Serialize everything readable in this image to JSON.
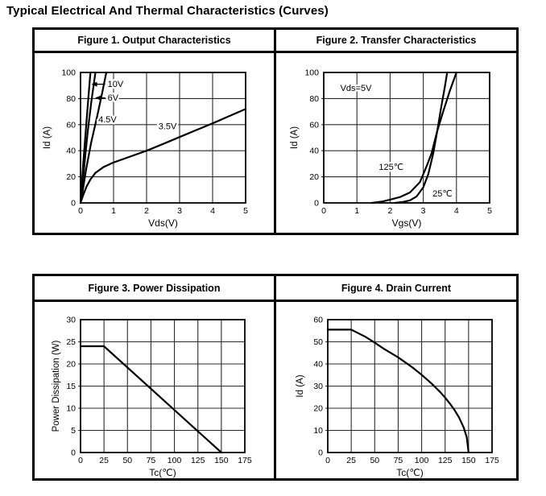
{
  "page_title": "Typical Electrical And Thermal Characteristics (Curves)",
  "colors": {
    "curve": "#000000",
    "grid": "#2b2b2b",
    "border": "#000000",
    "background": "#ffffff",
    "text": "#000000"
  },
  "panels": [
    {
      "header": "Figure 1. Output Characteristics"
    },
    {
      "header": "Figure 2. Transfer Characteristics"
    },
    {
      "header": "Figure 3. Power Dissipation"
    },
    {
      "header": "Figure 4. Drain Current"
    }
  ],
  "chart_data": [
    {
      "type": "line",
      "title": "Figure 1. Output Characteristics",
      "xlabel": "Vds(V)",
      "ylabel": "Id (A)",
      "xlim": [
        0,
        5
      ],
      "ylim": [
        0,
        100
      ],
      "xticks": [
        0,
        1,
        2,
        3,
        4,
        5
      ],
      "yticks": [
        0,
        20,
        40,
        60,
        80,
        100
      ],
      "grid": true,
      "legend": "inline-annotations",
      "series": [
        {
          "name": "Vgs=10V",
          "points": [
            [
              0,
              0
            ],
            [
              0.03,
              10
            ],
            [
              0.08,
              30
            ],
            [
              0.16,
              56
            ],
            [
              0.23,
              78
            ],
            [
              0.3,
              100
            ]
          ]
        },
        {
          "name": "Vgs=6V",
          "points": [
            [
              0,
              0
            ],
            [
              0.05,
              10
            ],
            [
              0.12,
              30
            ],
            [
              0.22,
              55
            ],
            [
              0.33,
              78
            ],
            [
              0.45,
              100
            ]
          ]
        },
        {
          "name": "Vgs=4.5V",
          "points": [
            [
              0,
              0
            ],
            [
              0.07,
              10
            ],
            [
              0.17,
              26
            ],
            [
              0.32,
              46
            ],
            [
              0.5,
              66
            ],
            [
              0.66,
              85
            ],
            [
              0.78,
              100
            ]
          ]
        },
        {
          "name": "Vgs=3.5V",
          "points": [
            [
              0,
              0
            ],
            [
              0.08,
              6
            ],
            [
              0.18,
              12.5
            ],
            [
              0.3,
              18
            ],
            [
              0.45,
              23
            ],
            [
              0.7,
              27.5
            ],
            [
              1.0,
              31
            ],
            [
              1.5,
              35.5
            ],
            [
              2.0,
              40
            ],
            [
              2.5,
              45.2
            ],
            [
              3.0,
              50.5
            ],
            [
              3.5,
              55.8
            ],
            [
              4.0,
              61
            ],
            [
              4.5,
              66.5
            ],
            [
              5.0,
              72
            ]
          ]
        }
      ],
      "annotations": [
        {
          "text": "10V",
          "x": 0.82,
          "y": 91,
          "arrow_to": [
            0.33,
            91
          ]
        },
        {
          "text": "6V",
          "x": 0.82,
          "y": 80.5,
          "arrow_to": [
            0.44,
            80.5
          ]
        },
        {
          "text": "4.5V",
          "x": 0.54,
          "y": 64
        },
        {
          "text": "3.5V",
          "x": 2.36,
          "y": 58.5
        }
      ]
    },
    {
      "type": "line",
      "title": "Figure 2. Transfer Characteristics",
      "xlabel": "Vgs(V)",
      "ylabel": "Id (A)",
      "xlim": [
        0,
        5
      ],
      "ylim": [
        0,
        100
      ],
      "xticks": [
        0,
        1,
        2,
        3,
        4,
        5
      ],
      "yticks": [
        0,
        20,
        40,
        60,
        80,
        100
      ],
      "grid": true,
      "legend": "inline-annotations",
      "series": [
        {
          "name": "125℃",
          "points": [
            [
              1.45,
              0
            ],
            [
              1.75,
              1
            ],
            [
              2.0,
              2.5
            ],
            [
              2.3,
              4.5
            ],
            [
              2.6,
              8
            ],
            [
              2.9,
              16
            ],
            [
              3.1,
              28
            ],
            [
              3.25,
              38
            ],
            [
              3.42,
              55
            ],
            [
              3.6,
              70
            ],
            [
              3.8,
              86
            ],
            [
              4.0,
              100
            ]
          ]
        },
        {
          "name": "25℃",
          "points": [
            [
              2.15,
              0
            ],
            [
              2.4,
              0.8
            ],
            [
              2.6,
              2
            ],
            [
              2.8,
              5
            ],
            [
              3.0,
              12
            ],
            [
              3.15,
              22
            ],
            [
              3.3,
              38
            ],
            [
              3.42,
              55
            ],
            [
              3.55,
              75
            ],
            [
              3.65,
              89
            ],
            [
              3.72,
              100
            ]
          ]
        }
      ],
      "annotations": [
        {
          "text": "Vds=5V",
          "x": 0.5,
          "y": 88
        },
        {
          "text": "125℃",
          "x": 1.66,
          "y": 27.5
        },
        {
          "text": "25℃",
          "x": 3.28,
          "y": 7
        }
      ]
    },
    {
      "type": "line",
      "title": "Figure 3. Power Dissipation",
      "xlabel": "Tc(℃)",
      "ylabel": "Power Dissipation (W)",
      "xlim": [
        0,
        175
      ],
      "ylim": [
        0,
        30
      ],
      "xticks": [
        0,
        25,
        50,
        75,
        100,
        125,
        150,
        175
      ],
      "yticks": [
        0,
        5,
        10,
        15,
        20,
        25,
        30
      ],
      "grid": true,
      "legend": "none",
      "series": [
        {
          "name": "Power Dissipation",
          "points": [
            [
              0,
              24
            ],
            [
              25,
              24
            ],
            [
              150,
              0
            ]
          ]
        }
      ],
      "annotations": []
    },
    {
      "type": "line",
      "title": "Figure 4. Drain Current",
      "xlabel": "Tc(℃)",
      "ylabel": "Id (A)",
      "xlim": [
        0,
        175
      ],
      "ylim": [
        0,
        60
      ],
      "xticks": [
        0,
        25,
        50,
        75,
        100,
        125,
        150,
        175
      ],
      "yticks": [
        0,
        10,
        20,
        30,
        40,
        50,
        60
      ],
      "grid": true,
      "legend": "none",
      "series": [
        {
          "name": "Id",
          "points": [
            [
              0,
              55.5
            ],
            [
              25,
              55.5
            ],
            [
              40,
              52.3
            ],
            [
              50,
              49.6
            ],
            [
              60,
              46.8
            ],
            [
              75,
              43.0
            ],
            [
              90,
              38.5
            ],
            [
              100,
              35.1
            ],
            [
              110,
              31.4
            ],
            [
              120,
              27.2
            ],
            [
              125,
              24.8
            ],
            [
              130,
              22.2
            ],
            [
              135,
              19.2
            ],
            [
              140,
              15.7
            ],
            [
              145,
              11.1
            ],
            [
              148,
              7.0
            ],
            [
              150,
              0
            ]
          ]
        }
      ],
      "annotations": []
    }
  ]
}
